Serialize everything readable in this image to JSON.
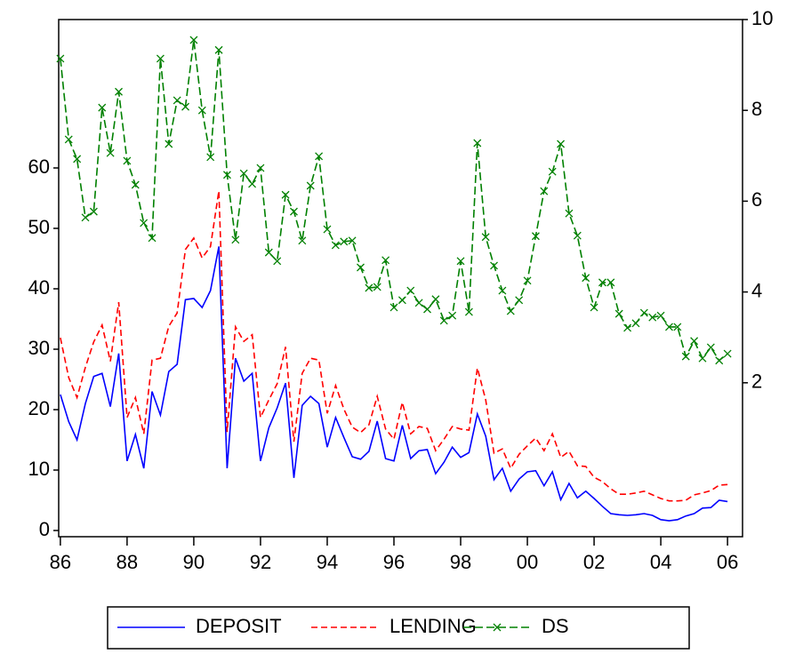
{
  "chart_data": {
    "type": "line",
    "x": [
      1986,
      1986.25,
      1986.5,
      1986.75,
      1987,
      1987.25,
      1987.5,
      1987.75,
      1988,
      1988.25,
      1988.5,
      1988.75,
      1989,
      1989.25,
      1989.5,
      1989.75,
      1990,
      1990.25,
      1990.5,
      1990.75,
      1991,
      1991.25,
      1991.5,
      1991.75,
      1992,
      1992.25,
      1992.5,
      1992.75,
      1993,
      1993.25,
      1993.5,
      1993.75,
      1994,
      1994.25,
      1994.5,
      1994.75,
      1995,
      1995.25,
      1995.5,
      1995.75,
      1996,
      1996.25,
      1996.5,
      1996.75,
      1997,
      1997.25,
      1997.5,
      1997.75,
      1998,
      1998.25,
      1998.5,
      1998.75,
      1999,
      1999.25,
      1999.5,
      1999.75,
      2000,
      2000.25,
      2000.5,
      2000.75,
      2001,
      2001.25,
      2001.5,
      2001.75,
      2002,
      2002.25,
      2002.5,
      2002.75,
      2003,
      2003.25,
      2003.5,
      2003.75,
      2004,
      2004.25,
      2004.5,
      2004.75,
      2005,
      2005.25,
      2005.5,
      2005.75,
      2006
    ],
    "series": [
      {
        "name": "DEPOSIT",
        "color": "#0000ff",
        "line_style": "solid",
        "axis": "y",
        "values": [
          22.5,
          18,
          15,
          21,
          25.5,
          26,
          20.5,
          29.3,
          11.5,
          15.9,
          10.3,
          23,
          19.1,
          26.3,
          27.5,
          38.2,
          38.4,
          36.9,
          39.7,
          47,
          10.3,
          28.5,
          24.7,
          26,
          11.5,
          17,
          20.3,
          24.4,
          8.7,
          20.7,
          22.2,
          21,
          13.8,
          18.7,
          15.4,
          12.2,
          11.8,
          13.1,
          18.1,
          11.9,
          11.5,
          17.4,
          11.9,
          13.2,
          13.4,
          9.4,
          11.3,
          13.8,
          12.1,
          12.9,
          19.3,
          15.6,
          8.4,
          10.3,
          6.5,
          8.5,
          9.7,
          9.9,
          7.4,
          9.7,
          5.1,
          7.8,
          5.4,
          6.5,
          5.3,
          4,
          2.8,
          2.6,
          2.5,
          2.6,
          2.8,
          2.5,
          1.8,
          1.6,
          1.8,
          2.4,
          2.8,
          3.7,
          3.8,
          5,
          4.8
        ]
      },
      {
        "name": "LENDING",
        "color": "#ff0000",
        "line_style": "dashed",
        "axis": "y",
        "values": [
          31.9,
          25.3,
          22,
          27,
          31.2,
          34,
          28,
          37.8,
          18.7,
          22,
          16,
          28.2,
          28.5,
          33.8,
          36,
          46.5,
          48.4,
          45.1,
          47,
          56.2,
          16.3,
          33.7,
          31.3,
          32.4,
          18.7,
          21.6,
          24.3,
          30.4,
          14.7,
          26,
          28.5,
          28.2,
          19.4,
          24,
          20.1,
          17.1,
          16.2,
          17.5,
          22.2,
          16.8,
          15.1,
          21.2,
          16,
          17.2,
          16.9,
          13.2,
          15.1,
          17.2,
          16.8,
          16.6,
          26.9,
          21.6,
          12.8,
          13.5,
          10.3,
          12.6,
          14,
          15.3,
          13.2,
          16,
          12.1,
          13.1,
          10.7,
          10.6,
          8.8,
          8.1,
          6.9,
          6,
          6,
          6.2,
          6.5,
          5.9,
          5.3,
          4.9,
          4.9,
          5,
          5.9,
          6.2,
          6.6,
          7.5,
          7.6
        ]
      },
      {
        "name": "DS",
        "color": "#008000",
        "line_style": "longdash",
        "marker": "x",
        "axis": "y2",
        "values": [
          9.14,
          7.36,
          6.93,
          5.64,
          5.77,
          8.06,
          7.06,
          8.41,
          6.89,
          6.36,
          5.52,
          5.19,
          9.14,
          7.26,
          8.22,
          8.08,
          9.55,
          8.0,
          6.97,
          9.33,
          6.58,
          5.15,
          6.61,
          6.38,
          6.73,
          4.87,
          4.68,
          6.14,
          5.77,
          5.13,
          6.34,
          6.99,
          5.38,
          5.03,
          5.11,
          5.13,
          4.54,
          4.09,
          4.11,
          4.7,
          3.66,
          3.82,
          4.03,
          3.76,
          3.62,
          3.84,
          3.37,
          3.48,
          4.68,
          3.56,
          7.28,
          5.21,
          4.58,
          4.03,
          3.58,
          3.82,
          4.25,
          5.23,
          6.22,
          6.65,
          7.26,
          5.73,
          5.24,
          4.31,
          3.66,
          4.21,
          4.21,
          3.52,
          3.21,
          3.31,
          3.54,
          3.44,
          3.48,
          3.23,
          3.23,
          2.58,
          2.92,
          2.54,
          2.78,
          2.49,
          2.64
        ]
      }
    ],
    "xlim": [
      1985.95,
      2006.45
    ],
    "xticks": [
      {
        "value": 1986,
        "label": "86"
      },
      {
        "value": 1988,
        "label": "88"
      },
      {
        "value": 1990,
        "label": "90"
      },
      {
        "value": 1992,
        "label": "92"
      },
      {
        "value": 1994,
        "label": "94"
      },
      {
        "value": 1996,
        "label": "96"
      },
      {
        "value": 1998,
        "label": "98"
      },
      {
        "value": 2000,
        "label": "00"
      },
      {
        "value": 2002,
        "label": "02"
      },
      {
        "value": 2004,
        "label": "04"
      },
      {
        "value": 2006,
        "label": "06"
      }
    ],
    "ylim": [
      -1.03,
      84.56
    ],
    "yticks": [
      0,
      10,
      20,
      30,
      40,
      50,
      60
    ],
    "y2lim": [
      -1.39,
      10
    ],
    "y2ticks": [
      2,
      4,
      6,
      8,
      10
    ],
    "grid": false,
    "legend": "bottom"
  }
}
